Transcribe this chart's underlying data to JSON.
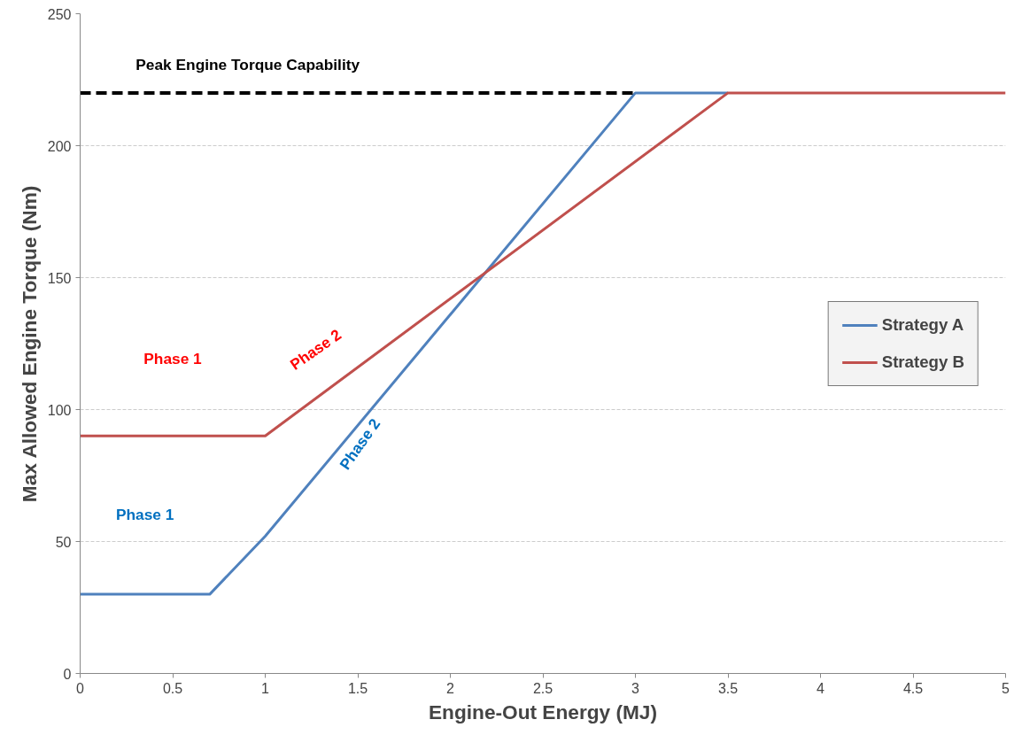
{
  "chart_data": {
    "type": "line",
    "xlabel": "Engine-Out Energy (MJ)",
    "ylabel": "Max Allowed Engine Torque (Nm)",
    "xlim": [
      0,
      5
    ],
    "xticks": [
      0,
      0.5,
      1,
      1.5,
      2,
      2.5,
      3,
      3.5,
      4,
      4.5,
      5
    ],
    "ylim": [
      0,
      250
    ],
    "yticks": [
      0,
      50,
      100,
      150,
      200,
      250
    ],
    "grid": "y",
    "legend": "right",
    "line_style": "solid",
    "marker": "none",
    "series": [
      {
        "name": "Strategy A",
        "color": "#4f81bd",
        "x": [
          0,
          0.7,
          1,
          3,
          3.5
        ],
        "values": [
          30,
          30,
          52,
          220,
          220
        ]
      },
      {
        "name": "Strategy B",
        "color": "#c0504d",
        "x": [
          0,
          1,
          3.5,
          5
        ],
        "values": [
          90,
          90,
          220,
          220
        ]
      },
      {
        "name": "Peak Engine Torque Capability",
        "color": "#000000",
        "x": [
          0,
          3
        ],
        "values": [
          220,
          220
        ],
        "line_style": "dashed"
      }
    ],
    "annotations": [
      "Phase 1",
      "Phase 2",
      "Phase 1",
      "Phase 2"
    ]
  }
}
